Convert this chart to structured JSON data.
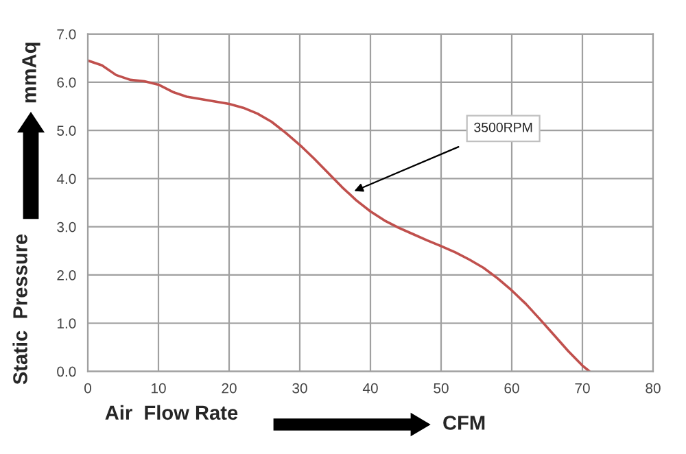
{
  "chart_data": {
    "type": "line",
    "xlabel": "Air  Flow Rate",
    "ylabel": "Static  Pressure",
    "annotations": [
      "3500RPM",
      "CFM",
      "mmAq"
    ],
    "x": [
      0,
      2,
      4,
      6,
      8,
      10,
      12,
      14,
      16,
      18,
      20,
      22,
      24,
      26,
      28,
      30,
      32,
      34,
      36,
      38,
      40,
      42,
      44,
      46,
      48,
      50,
      52,
      54,
      56,
      58,
      60,
      62,
      64,
      66,
      68,
      70,
      71
    ],
    "series": [
      {
        "color": "#c0504d",
        "values": [
          6.45,
          6.35,
          6.15,
          6.05,
          6.02,
          5.95,
          5.8,
          5.7,
          5.65,
          5.6,
          5.55,
          5.47,
          5.35,
          5.18,
          4.95,
          4.7,
          4.42,
          4.12,
          3.82,
          3.55,
          3.32,
          3.13,
          2.98,
          2.85,
          2.72,
          2.6,
          2.47,
          2.32,
          2.15,
          1.93,
          1.68,
          1.4,
          1.08,
          0.75,
          0.42,
          0.12,
          0.0
        ]
      }
    ],
    "xlim": [
      0,
      80
    ],
    "xticks": [
      0,
      10,
      20,
      30,
      40,
      50,
      60,
      70,
      80
    ],
    "ylim": [
      0,
      7
    ],
    "yticks": [
      {
        "value": 0,
        "label": "0.0"
      },
      {
        "value": 1,
        "label": "1.0"
      },
      {
        "value": 2,
        "label": "2.0"
      },
      {
        "value": 3,
        "label": "3.0"
      },
      {
        "value": 4,
        "label": "4.0"
      },
      {
        "value": 5,
        "label": "5.0"
      },
      {
        "value": 6,
        "label": "6.0"
      },
      {
        "value": 7,
        "label": "7.0"
      }
    ],
    "grid": true,
    "legend": false,
    "marker": "none",
    "line_style": "solid"
  }
}
